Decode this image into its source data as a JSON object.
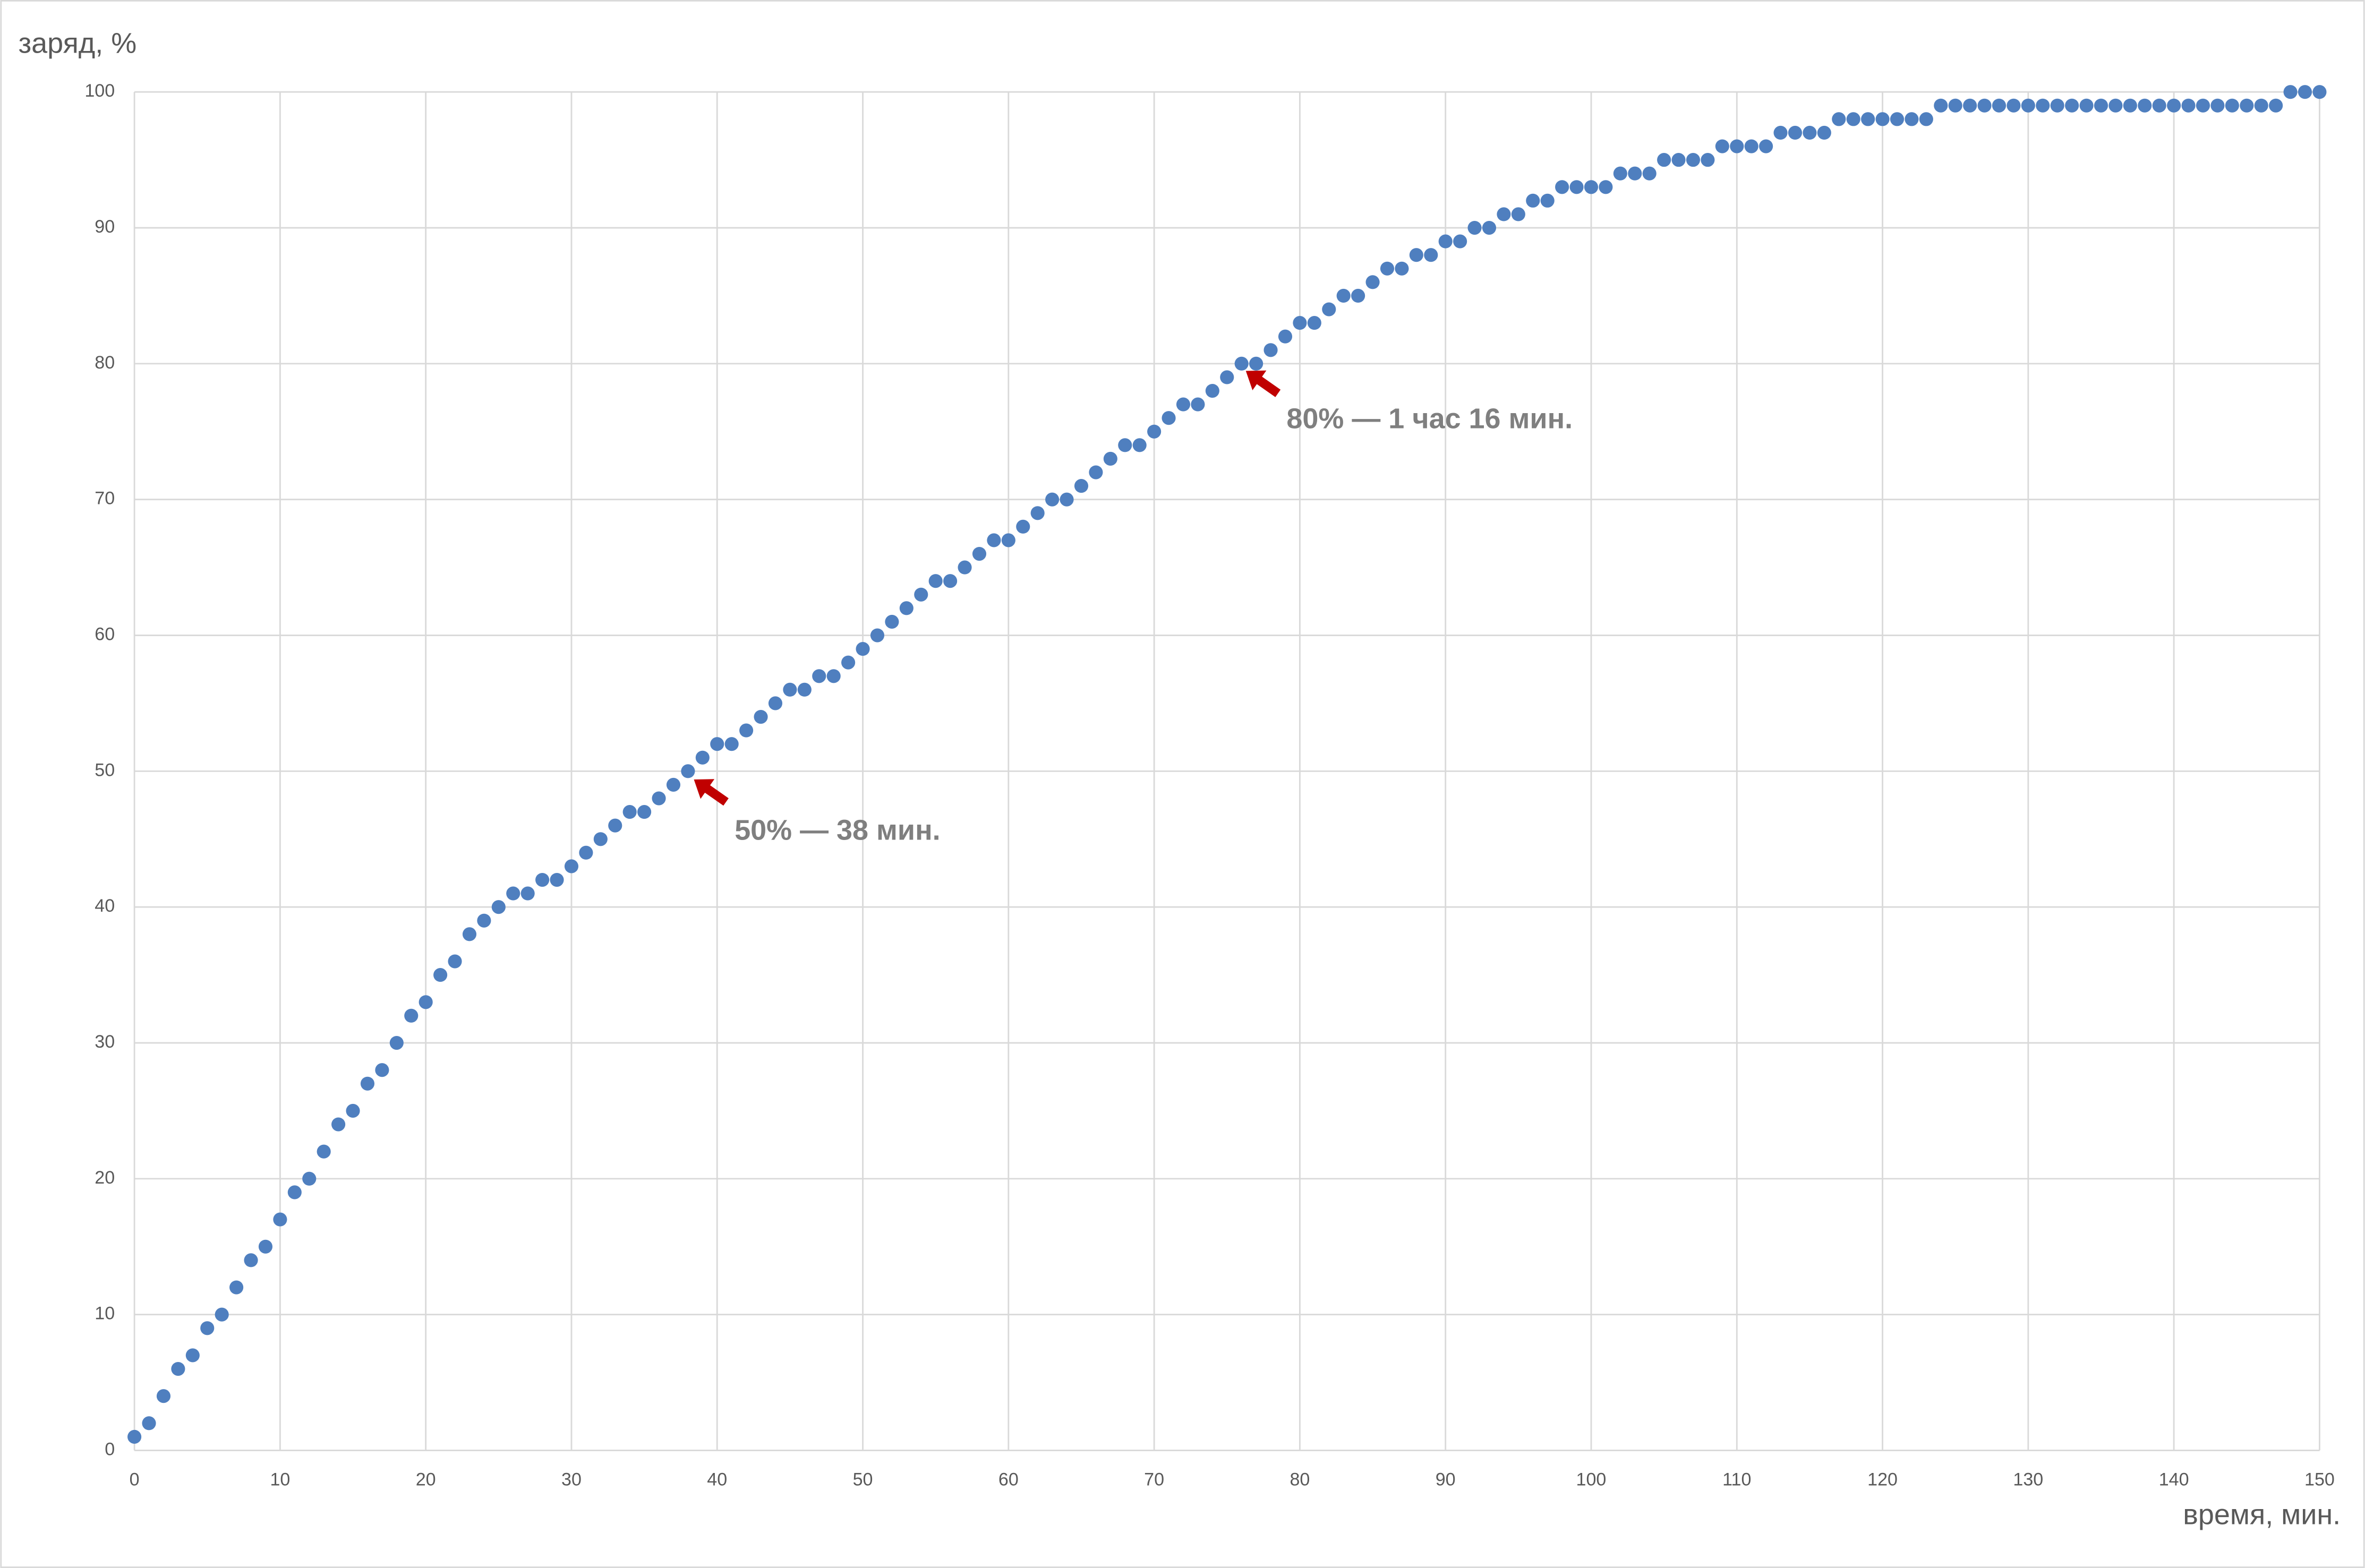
{
  "chart_data": {
    "type": "scatter",
    "y_label": "заряд, %",
    "x_label": "время, мин.",
    "annotations": [
      "50% — 38 мин.",
      "80% — 1 час 16 мин."
    ],
    "color": "#4f7fbf",
    "grid": true,
    "xlim": [
      0,
      150
    ],
    "xticks": [
      0,
      10,
      20,
      30,
      40,
      50,
      60,
      70,
      80,
      90,
      100,
      110,
      120,
      130,
      140,
      150
    ],
    "ylim": [
      0,
      100
    ],
    "yticks": [
      0,
      10,
      20,
      30,
      40,
      50,
      60,
      70,
      80,
      90,
      100
    ],
    "x": [
      0,
      1,
      2,
      3,
      4,
      5,
      6,
      7,
      8,
      9,
      10,
      11,
      12,
      13,
      14,
      15,
      16,
      17,
      18,
      19,
      20,
      21,
      22,
      23,
      24,
      25,
      26,
      27,
      28,
      29,
      30,
      31,
      32,
      33,
      34,
      35,
      36,
      37,
      38,
      39,
      40,
      41,
      42,
      43,
      44,
      45,
      46,
      47,
      48,
      49,
      50,
      51,
      52,
      53,
      54,
      55,
      56,
      57,
      58,
      59,
      60,
      61,
      62,
      63,
      64,
      65,
      66,
      67,
      68,
      69,
      70,
      71,
      72,
      73,
      74,
      75,
      76,
      77,
      78,
      79,
      80,
      81,
      82,
      83,
      84,
      85,
      86,
      87,
      88,
      89,
      90,
      91,
      92,
      93,
      94,
      95,
      96,
      97,
      98,
      99,
      100,
      101,
      102,
      103,
      104,
      105,
      106,
      107,
      108,
      109,
      110,
      111,
      112,
      113,
      114,
      115,
      116,
      117,
      118,
      119,
      120,
      121,
      122,
      123,
      124,
      125,
      126,
      127,
      128,
      129,
      130,
      131,
      132,
      133,
      134,
      135,
      136,
      137,
      138,
      139,
      140,
      141,
      142,
      143,
      144,
      145,
      146,
      147,
      148,
      149,
      150
    ],
    "values": [
      1,
      2,
      4,
      6,
      7,
      9,
      10,
      12,
      14,
      15,
      17,
      19,
      20,
      22,
      24,
      25,
      27,
      28,
      30,
      32,
      33,
      35,
      36,
      38,
      39,
      40,
      41,
      41,
      42,
      42,
      43,
      44,
      45,
      46,
      47,
      47,
      48,
      49,
      50,
      51,
      52,
      52,
      53,
      54,
      55,
      56,
      56,
      57,
      57,
      58,
      59,
      60,
      61,
      62,
      63,
      64,
      64,
      65,
      66,
      67,
      67,
      68,
      69,
      70,
      70,
      71,
      72,
      73,
      74,
      74,
      75,
      76,
      77,
      77,
      78,
      79,
      80,
      80,
      81,
      82,
      83,
      83,
      84,
      85,
      85,
      86,
      87,
      87,
      88,
      88,
      89,
      89,
      90,
      90,
      91,
      91,
      92,
      92,
      93,
      93,
      93,
      93,
      94,
      94,
      94,
      95,
      95,
      95,
      95,
      96,
      96,
      96,
      96,
      97,
      97,
      97,
      97,
      98,
      98,
      98,
      98,
      98,
      98,
      98,
      99,
      99,
      99,
      99,
      99,
      99,
      99,
      99,
      99,
      99,
      99,
      99,
      99,
      99,
      99,
      99,
      99,
      99,
      99,
      99,
      99,
      99,
      99,
      99,
      100,
      100,
      100
    ]
  }
}
